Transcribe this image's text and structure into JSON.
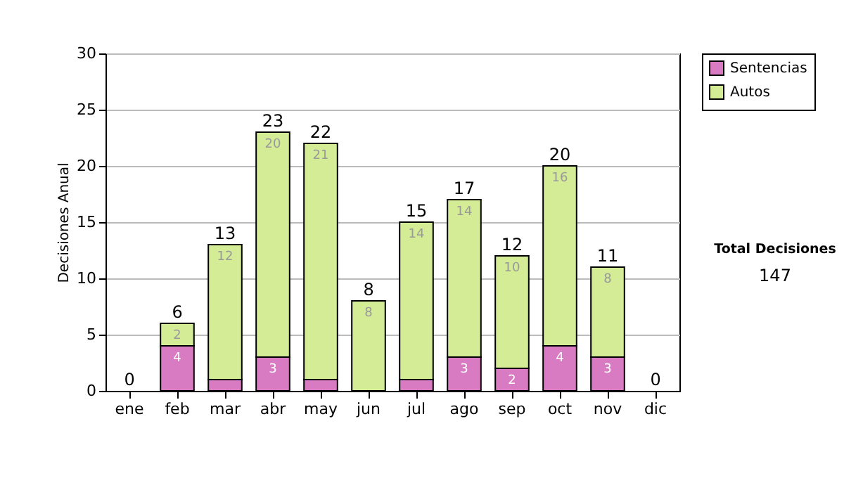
{
  "chart_data": {
    "type": "bar",
    "stacked": true,
    "ylabel": "Decisiones Anual",
    "categories": [
      "ene",
      "feb",
      "mar",
      "abr",
      "may",
      "jun",
      "jul",
      "ago",
      "sep",
      "oct",
      "nov",
      "dic"
    ],
    "series": [
      {
        "name": "Sentencias",
        "color": "#d97bc3",
        "values": [
          0,
          4,
          1,
          3,
          1,
          0,
          1,
          3,
          2,
          4,
          3,
          0
        ],
        "value_labels": [
          null,
          "4",
          null,
          "3",
          null,
          null,
          null,
          "3",
          "2",
          "4",
          "3",
          null
        ]
      },
      {
        "name": "Autos",
        "color": "#d4ec96",
        "values": [
          0,
          2,
          12,
          20,
          21,
          8,
          14,
          14,
          10,
          16,
          8,
          0
        ],
        "value_labels": [
          null,
          "2",
          "12",
          "20",
          "21",
          "8",
          "14",
          "14",
          "10",
          "16",
          "8",
          null
        ]
      }
    ],
    "totals": [
      "0",
      "6",
      "13",
      "23",
      "22",
      "8",
      "15",
      "17",
      "12",
      "20",
      "11",
      "0"
    ],
    "ylim": [
      0,
      30
    ],
    "yticks": [
      0,
      5,
      10,
      15,
      20,
      25,
      30
    ],
    "grid": "y",
    "legend": "right",
    "annotations": [
      "Total Decisiones",
      "147"
    ]
  }
}
